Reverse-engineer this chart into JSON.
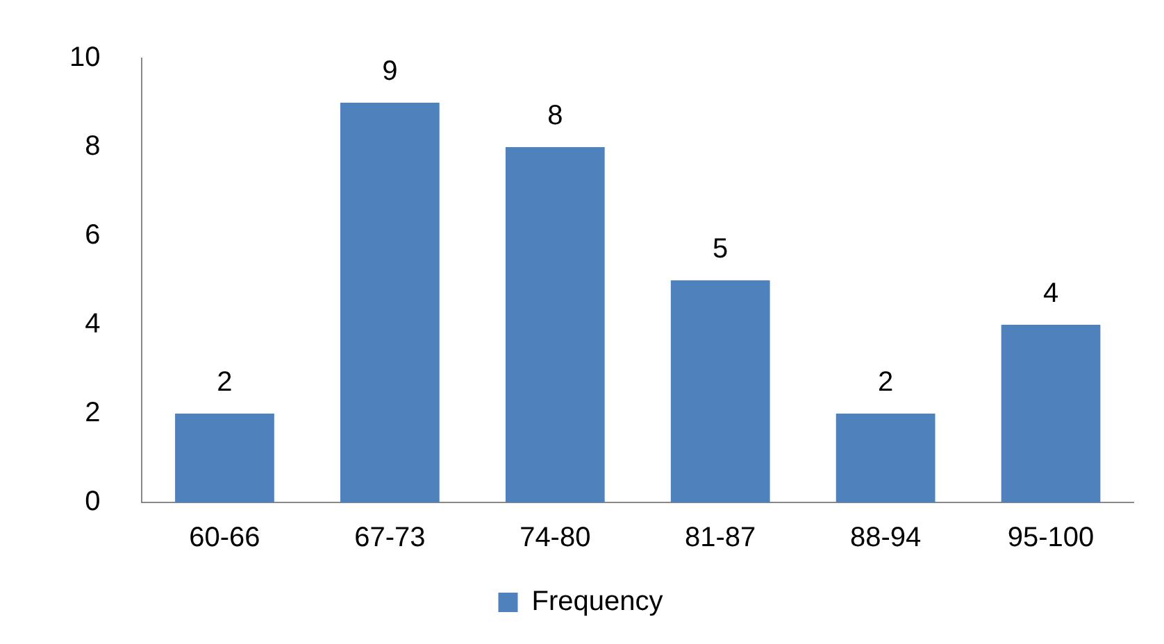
{
  "chart_data": {
    "type": "bar",
    "categories": [
      "60-66",
      "67-73",
      "74-80",
      "81-87",
      "88-94",
      "95-100"
    ],
    "series": [
      {
        "name": "Frequency",
        "color": "#4f81bd",
        "values": [
          2,
          9,
          8,
          5,
          2,
          4
        ]
      }
    ],
    "ylim": [
      0,
      10
    ],
    "yticks": [
      0,
      2,
      4,
      6,
      8,
      10
    ],
    "grid": false,
    "legend": "bottom",
    "data_labels": true
  }
}
